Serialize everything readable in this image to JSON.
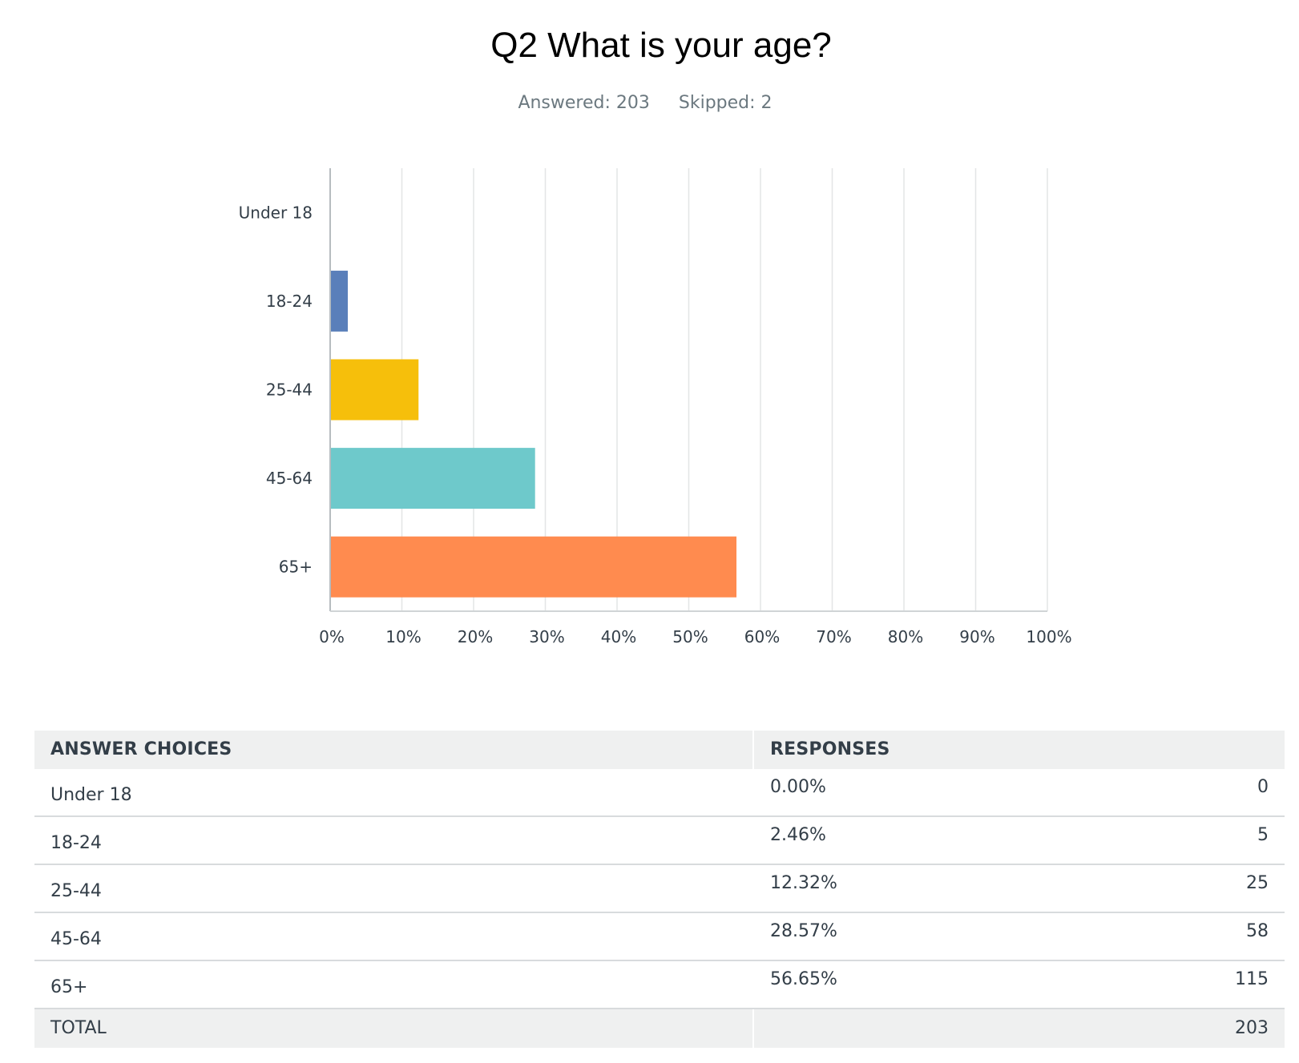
{
  "question": {
    "title": "Q2 What is your age?",
    "answered": "Answered: 203",
    "skipped": "Skipped: 2"
  },
  "chart_data": {
    "type": "bar",
    "orientation": "horizontal",
    "categories": [
      "Under 18",
      "18-24",
      "25-44",
      "45-64",
      "65+"
    ],
    "values": [
      0.0,
      2.46,
      12.32,
      28.57,
      56.65
    ],
    "colors": [
      "#6a8fc7",
      "#5a7fba",
      "#f6bf0b",
      "#6ec9cb",
      "#ff8b4f"
    ],
    "xlim": [
      0,
      100
    ],
    "xticks": [
      "0%",
      "10%",
      "20%",
      "30%",
      "40%",
      "50%",
      "60%",
      "70%",
      "80%",
      "90%",
      "100%"
    ],
    "grid": true
  },
  "table": {
    "headers": [
      "ANSWER CHOICES",
      "RESPONSES"
    ],
    "rows": [
      {
        "choice": "Under 18",
        "percent": "0.00%",
        "count": "0"
      },
      {
        "choice": "18-24",
        "percent": "2.46%",
        "count": "5"
      },
      {
        "choice": "25-44",
        "percent": "12.32%",
        "count": "25"
      },
      {
        "choice": "45-64",
        "percent": "28.57%",
        "count": "58"
      },
      {
        "choice": "65+",
        "percent": "56.65%",
        "count": "115"
      }
    ],
    "total_label": "TOTAL",
    "total_count": "203"
  }
}
